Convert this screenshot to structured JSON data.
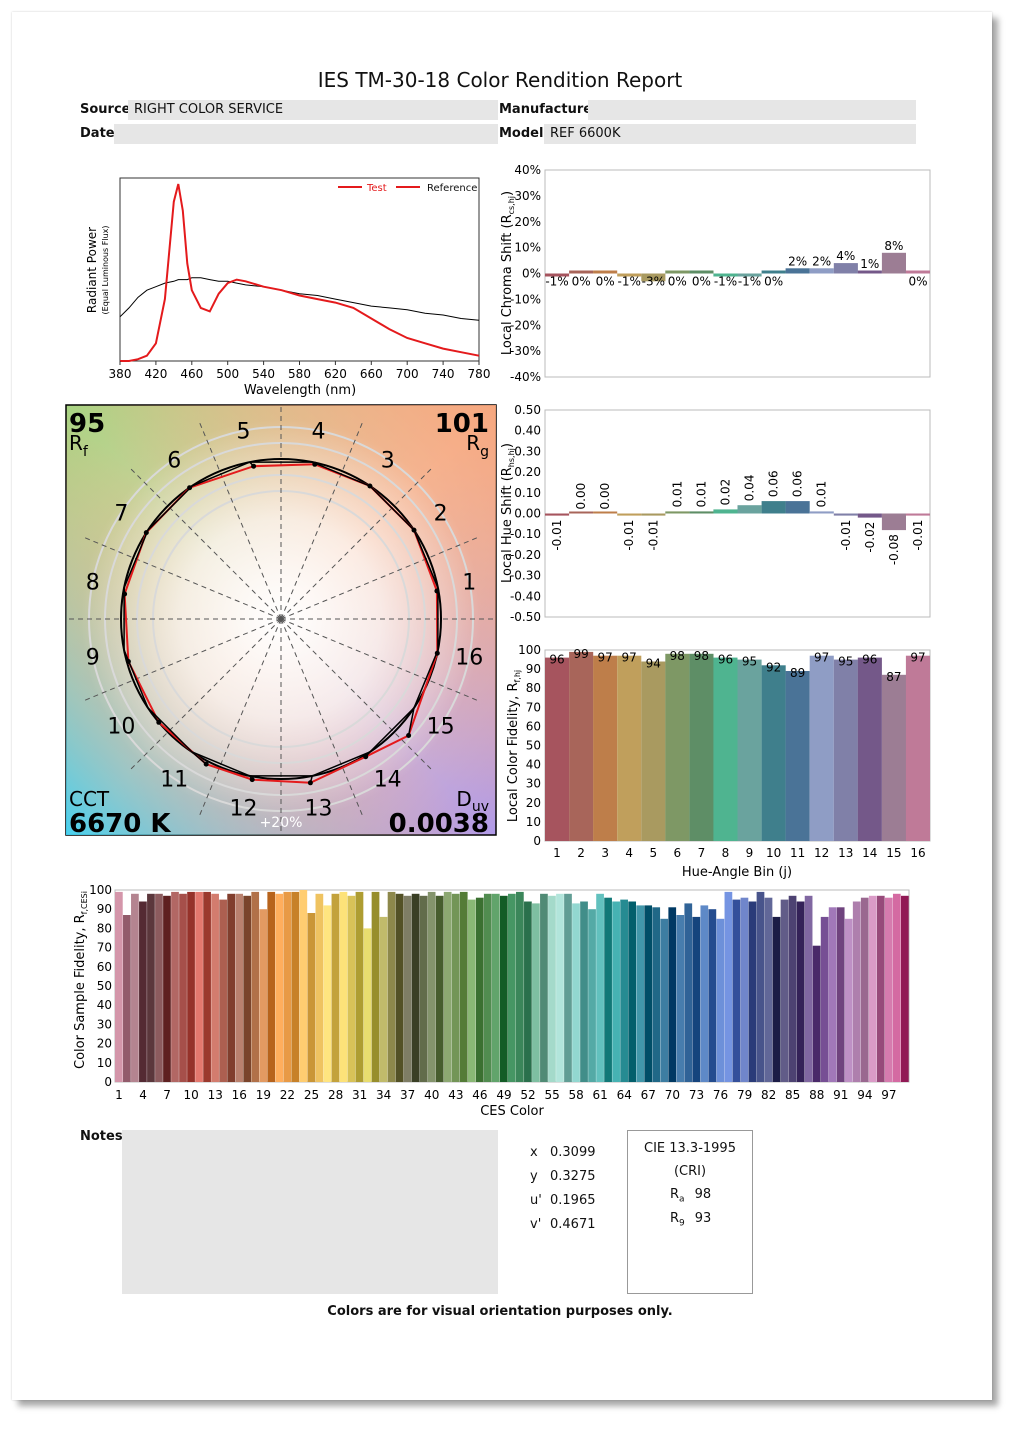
{
  "report": {
    "title": "IES TM-30-18 Color Rendition Report",
    "source_label": "Source:",
    "source_value": "RIGHT COLOR SERVICE",
    "manufacturer_label": "Manufacturer:",
    "manufacturer_value": "",
    "date_label": "Date:",
    "date_value": "",
    "model_label": "Model:",
    "model_value": "REF 6600K",
    "notes_label": "Notes:",
    "footer": "Colors are for visual orientation purposes only."
  },
  "metrics": {
    "rf_value": "95",
    "rf_label": "R",
    "rf_sub": "f",
    "rg_value": "101",
    "rg_label": "R",
    "rg_sub": "g",
    "cct_label": "CCT",
    "cct_value": "6670 K",
    "duv_label": "D",
    "duv_sub": "uv",
    "duv_value": "0.0038",
    "ring_label": "+20%"
  },
  "chromaticity": {
    "x_label": "x",
    "x_value": "0.3099",
    "y_label": "y",
    "y_value": "0.3275",
    "u_label": "u'",
    "u_value": "0.1965",
    "v_label": "v'",
    "v_value": "0.4671"
  },
  "cri": {
    "title1": "CIE 13.3-1995",
    "title2": "(CRI)",
    "ra_label": "R",
    "ra_sub": "a",
    "ra_value": "98",
    "r9_label": "R",
    "r9_sub": "9",
    "r9_value": "93"
  },
  "colors": {
    "test": "#e41a1c",
    "reference": "#000000",
    "bins": [
      "#a6545e",
      "#a8655a",
      "#be7e4a",
      "#c09f5c",
      "#a99a60",
      "#7e9865",
      "#5e8e66",
      "#4fb490",
      "#6aa39e",
      "#3f7f8c",
      "#4a7397",
      "#8f9dc5",
      "#8080a8",
      "#745889",
      "#9c7d94",
      "#bf7a98"
    ]
  },
  "chart_data": [
    {
      "type": "line",
      "xlabel": "Wavelength (nm)",
      "ylabel": "Radiant Power",
      "ylabel_sub": "(Equal Luminous Flux)",
      "xlim": [
        380,
        780
      ],
      "x_ticks": [
        "380",
        "420",
        "460",
        "500",
        "540",
        "580",
        "620",
        "660",
        "700",
        "740",
        "780"
      ],
      "legend": [
        "Test",
        "Reference"
      ],
      "x": [
        380,
        390,
        400,
        410,
        420,
        430,
        440,
        445,
        450,
        455,
        460,
        470,
        480,
        490,
        500,
        510,
        520,
        540,
        560,
        580,
        600,
        620,
        640,
        660,
        680,
        700,
        720,
        740,
        760,
        780
      ],
      "series": [
        {
          "name": "Test",
          "values": [
            0,
            0,
            0.01,
            0.03,
            0.1,
            0.35,
            0.9,
            1.0,
            0.85,
            0.55,
            0.4,
            0.3,
            0.28,
            0.38,
            0.44,
            0.46,
            0.45,
            0.42,
            0.4,
            0.37,
            0.35,
            0.33,
            0.3,
            0.24,
            0.18,
            0.13,
            0.1,
            0.07,
            0.05,
            0.03
          ]
        },
        {
          "name": "Reference",
          "values": [
            0.25,
            0.3,
            0.36,
            0.4,
            0.42,
            0.44,
            0.45,
            0.46,
            0.46,
            0.46,
            0.47,
            0.47,
            0.46,
            0.45,
            0.45,
            0.44,
            0.43,
            0.42,
            0.4,
            0.38,
            0.37,
            0.35,
            0.33,
            0.31,
            0.3,
            0.29,
            0.27,
            0.26,
            0.24,
            0.23
          ]
        }
      ]
    },
    {
      "type": "bar",
      "ylabel": "Local Chroma Shift (R",
      "ylabel_sub": "cs,hj",
      "ylim": [
        -40,
        40
      ],
      "y_ticks": [
        "40%",
        "30%",
        "20%",
        "10%",
        "0%",
        "-10%",
        "-20%",
        "-30%",
        "-40%"
      ],
      "categories": [
        "1",
        "2",
        "3",
        "4",
        "5",
        "6",
        "7",
        "8",
        "9",
        "10",
        "11",
        "12",
        "13",
        "14",
        "15",
        "16"
      ],
      "values": [
        -1,
        0,
        0,
        -1,
        -3,
        0,
        0,
        -1,
        -1,
        0,
        2,
        2,
        4,
        1,
        8,
        0
      ],
      "labels": [
        "-1%",
        "0%",
        "0%",
        "-1%",
        "-3%",
        "0%",
        "0%",
        "-1%",
        "-1%",
        "0%",
        "2%",
        "2%",
        "4%",
        "1%",
        "8%",
        "0%"
      ]
    },
    {
      "type": "bar",
      "ylabel": "Local Hue Shift (R",
      "ylabel_sub": "hs,hj",
      "ylim": [
        -0.5,
        0.5
      ],
      "y_ticks": [
        "0.50",
        "0.40",
        "0.30",
        "0.20",
        "0.10",
        "0.00",
        "-0.10",
        "-0.20",
        "-0.30",
        "-0.40",
        "-0.50"
      ],
      "categories": [
        "1",
        "2",
        "3",
        "4",
        "5",
        "6",
        "7",
        "8",
        "9",
        "10",
        "11",
        "12",
        "13",
        "14",
        "15",
        "16"
      ],
      "values": [
        -0.01,
        0.0,
        0.0,
        -0.01,
        -0.01,
        0.01,
        0.01,
        0.02,
        0.04,
        0.06,
        0.06,
        0.01,
        -0.01,
        -0.02,
        -0.08,
        -0.01
      ],
      "labels": [
        "-0.01",
        "0.00",
        "0.00",
        "-0.01",
        "-0.01",
        "0.01",
        "0.01",
        "0.02",
        "0.04",
        "0.06",
        "0.06",
        "0.01",
        "-0.01",
        "-0.02",
        "-0.08",
        "-0.01"
      ]
    },
    {
      "type": "bar",
      "xlabel": "Hue-Angle Bin (j)",
      "ylabel": "Local Color Fidelity, R",
      "ylabel_sub": "f,hj",
      "ylim": [
        0,
        100
      ],
      "y_ticks": [
        "100",
        "90",
        "80",
        "70",
        "60",
        "50",
        "40",
        "30",
        "20",
        "10",
        "0"
      ],
      "categories": [
        "1",
        "2",
        "3",
        "4",
        "5",
        "6",
        "7",
        "8",
        "9",
        "10",
        "11",
        "12",
        "13",
        "14",
        "15",
        "16"
      ],
      "values": [
        96,
        99,
        97,
        97,
        94,
        98,
        98,
        96,
        95,
        92,
        89,
        97,
        95,
        96,
        87,
        97
      ]
    },
    {
      "type": "bar",
      "xlabel": "CES Color",
      "ylabel": "Color Sample Fidelity, R",
      "ylabel_sub": "f,CESi",
      "ylim": [
        0,
        100
      ],
      "y_ticks": [
        "100",
        "90",
        "80",
        "70",
        "60",
        "50",
        "40",
        "30",
        "20",
        "10",
        "0"
      ],
      "x_ticks": [
        "1",
        "4",
        "7",
        "10",
        "13",
        "16",
        "19",
        "22",
        "25",
        "28",
        "31",
        "34",
        "37",
        "40",
        "43",
        "46",
        "49",
        "52",
        "55",
        "58",
        "61",
        "64",
        "67",
        "70",
        "73",
        "76",
        "79",
        "82",
        "85",
        "88",
        "91",
        "94",
        "97"
      ],
      "values": [
        99,
        87,
        98,
        94,
        98,
        98,
        97,
        99,
        98,
        99,
        99,
        99,
        98,
        95,
        98,
        98,
        97,
        99,
        90,
        99,
        98,
        99,
        99,
        100,
        88,
        98,
        92,
        98,
        99,
        97,
        99,
        80,
        99,
        86,
        99,
        98,
        97,
        98,
        97,
        99,
        97,
        99,
        98,
        99,
        95,
        96,
        98,
        98,
        97,
        98,
        99,
        94,
        93,
        98,
        97,
        98,
        98,
        93,
        94,
        90,
        98,
        96,
        94,
        95,
        94,
        92,
        92,
        91,
        85,
        91,
        87,
        93,
        86,
        92,
        90,
        85,
        99,
        95,
        96,
        94,
        99,
        96,
        86,
        95,
        97,
        94,
        97,
        71,
        86,
        91,
        91,
        85,
        94,
        96,
        97,
        97,
        96,
        98,
        97
      ]
    }
  ]
}
